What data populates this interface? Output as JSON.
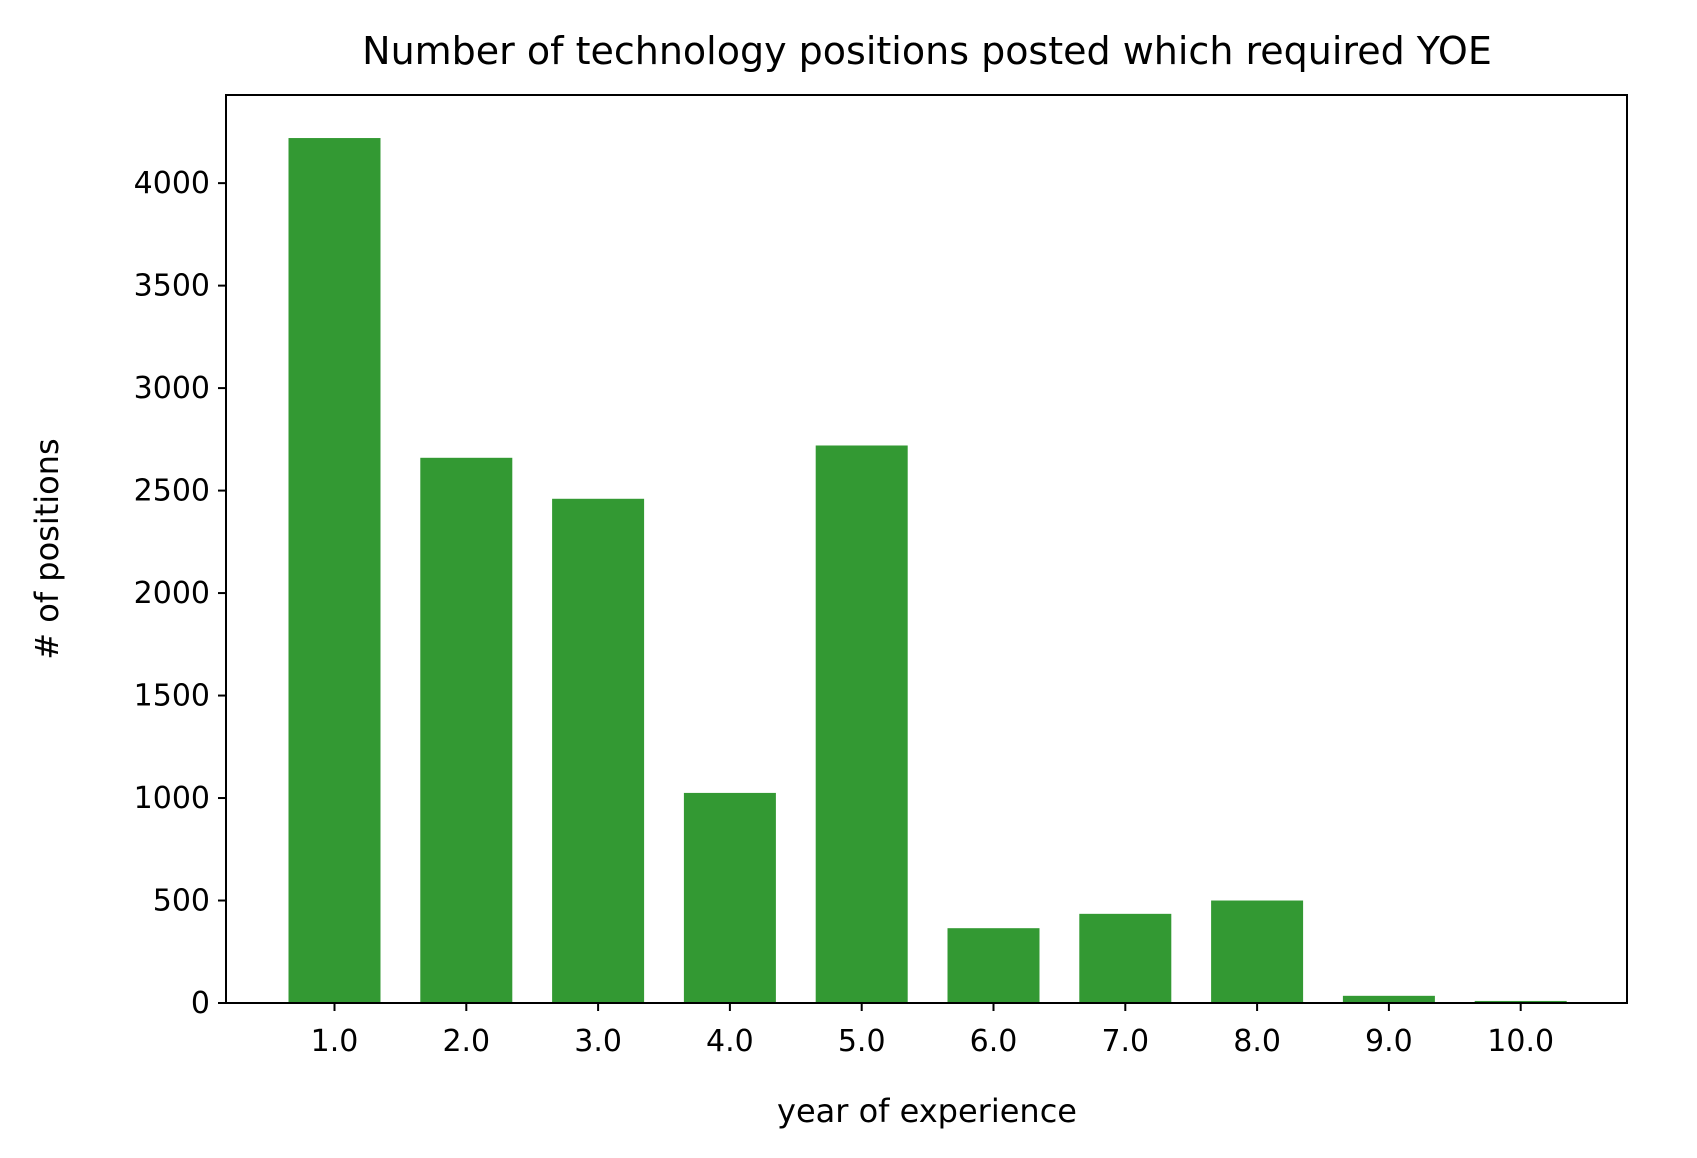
{
  "chart_data": {
    "type": "bar",
    "title": "Number of technology positions posted which required YOE",
    "xlabel": "year of experience",
    "ylabel": "# of positions",
    "categories": [
      "1.0",
      "2.0",
      "3.0",
      "4.0",
      "5.0",
      "6.0",
      "7.0",
      "8.0",
      "9.0",
      "10.0"
    ],
    "values": [
      4220,
      2660,
      2460,
      1025,
      2720,
      365,
      435,
      500,
      35,
      10
    ],
    "ylim": [
      0,
      4430
    ],
    "yticks": [
      0,
      500,
      1000,
      1500,
      2000,
      2500,
      3000,
      3500,
      4000
    ],
    "grid": false,
    "bar_color": "#339933"
  }
}
